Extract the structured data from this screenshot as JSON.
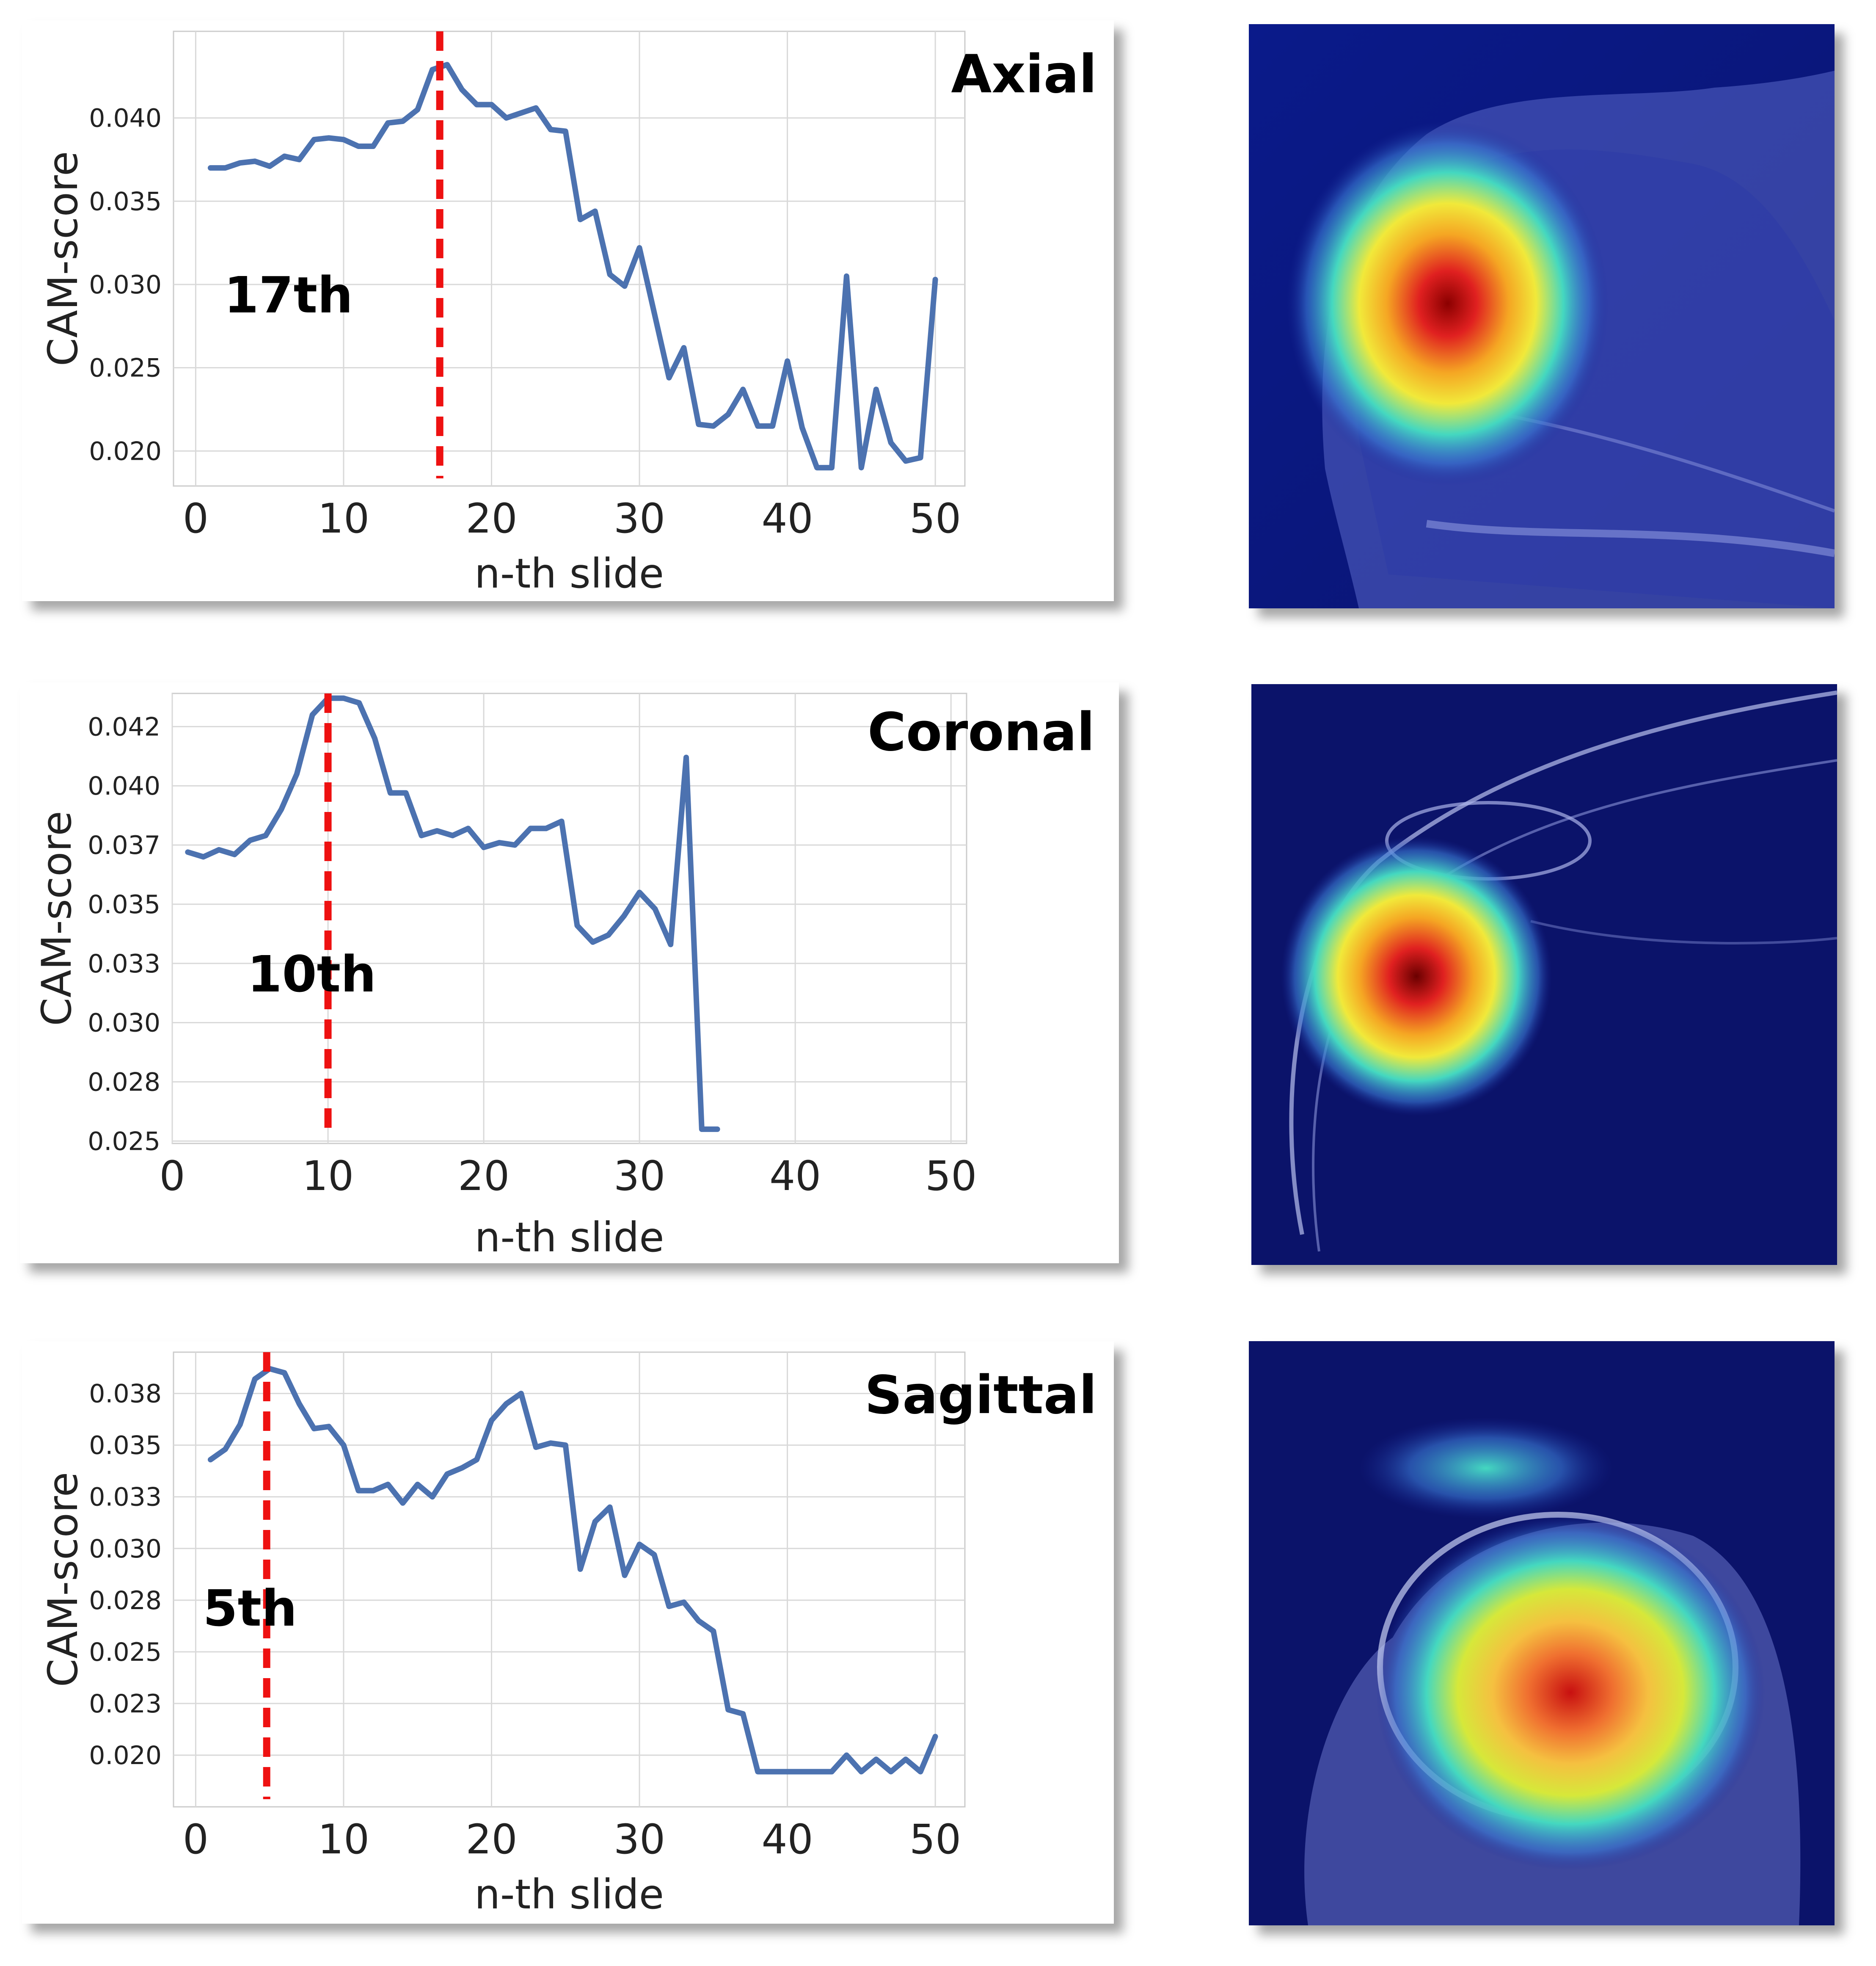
{
  "colors": {
    "line": "#4c72b0",
    "marker": "#ee1111",
    "grid": "#d9d9d9"
  },
  "chart_data": [
    {
      "type": "line",
      "title": "Axial",
      "xlabel": "n-th slide",
      "ylabel": "CAM-score",
      "xlim": [
        -1.5,
        52
      ],
      "ylim": [
        0.0179,
        0.0452
      ],
      "xticks": [
        0,
        10,
        20,
        30,
        40,
        50
      ],
      "xtick_labels": [
        "0",
        "10",
        "20",
        "30",
        "40",
        "50"
      ],
      "yticks": [
        0.02,
        0.025,
        0.03,
        0.035,
        0.04
      ],
      "ytick_labels": [
        "0.020",
        "0.025",
        "0.030",
        "0.035",
        "0.040"
      ],
      "grid": true,
      "marker_x": 16.5,
      "marker_label": "17th",
      "series": [
        {
          "x": [
            1,
            2,
            3,
            4,
            5,
            6,
            7,
            8,
            9,
            10,
            11,
            12,
            13,
            14,
            15,
            16,
            17,
            18,
            19,
            20,
            21,
            22,
            23,
            24,
            25,
            26,
            27,
            28,
            29,
            30,
            31,
            32,
            33,
            34,
            35,
            36,
            37,
            38,
            39,
            40,
            41,
            42,
            43,
            44,
            45,
            46,
            47,
            48,
            49,
            50
          ],
          "values": [
            0.037,
            0.037,
            0.0373,
            0.0374,
            0.0371,
            0.0377,
            0.0375,
            0.0387,
            0.0388,
            0.0387,
            0.0383,
            0.0383,
            0.0397,
            0.0398,
            0.0405,
            0.0429,
            0.0432,
            0.0417,
            0.0408,
            0.0408,
            0.04,
            0.0403,
            0.0406,
            0.0393,
            0.0392,
            0.0339,
            0.0344,
            0.0306,
            0.0299,
            0.0322,
            0.0283,
            0.0244,
            0.0262,
            0.0216,
            0.0215,
            0.0222,
            0.0237,
            0.0215,
            0.0215,
            0.0254,
            0.0214,
            0.019,
            0.019,
            0.0305,
            0.019,
            0.0237,
            0.0205,
            0.0194,
            0.0196,
            0.0303
          ]
        }
      ]
    },
    {
      "type": "line",
      "title": "Coronal",
      "xlabel": "n-th slide",
      "ylabel": "CAM-score",
      "xlim": [
        0,
        51
      ],
      "ylim": [
        0.0249,
        0.0439
      ],
      "xticks": [
        0,
        10,
        20,
        30,
        40,
        50
      ],
      "xtick_labels": [
        "0",
        "10",
        "20",
        "30",
        "40",
        "50"
      ],
      "yticks": [
        0.025,
        0.0275,
        0.03,
        0.0325,
        0.035,
        0.0375,
        0.04,
        0.0425
      ],
      "ytick_labels": [
        "0.025",
        "0.028",
        "0.030",
        "0.033",
        "0.035",
        "0.037",
        "0.040",
        "0.042"
      ],
      "grid": true,
      "marker_x": 10,
      "marker_label": "10th",
      "series": [
        {
          "x": [
            1,
            2,
            3,
            4,
            5,
            6,
            7,
            8,
            9,
            10,
            11,
            12,
            13,
            14,
            15,
            16,
            17,
            18,
            19,
            20,
            21,
            22,
            23,
            24,
            25,
            26,
            27,
            28,
            29,
            30,
            31,
            32,
            33,
            34,
            35
          ],
          "values": [
            0.0372,
            0.037,
            0.0373,
            0.0371,
            0.0377,
            0.0379,
            0.039,
            0.0405,
            0.043,
            0.0437,
            0.0437,
            0.0435,
            0.042,
            0.0397,
            0.0397,
            0.0379,
            0.0381,
            0.0379,
            0.0382,
            0.0374,
            0.0376,
            0.0375,
            0.0382,
            0.0382,
            0.0385,
            0.0341,
            0.0334,
            0.0337,
            0.0345,
            0.0355,
            0.0348,
            0.0333,
            0.0412,
            0.0255,
            0.0255
          ]
        }
      ]
    },
    {
      "type": "line",
      "title": "Sagittal",
      "xlabel": "n-th slide",
      "ylabel": "CAM-score",
      "xlim": [
        -1.5,
        52
      ],
      "ylim": [
        0.0175,
        0.0395
      ],
      "xticks": [
        0,
        10,
        20,
        30,
        40,
        50
      ],
      "xtick_labels": [
        "0",
        "10",
        "20",
        "30",
        "40",
        "50"
      ],
      "yticks": [
        0.02,
        0.0225,
        0.025,
        0.0275,
        0.03,
        0.0325,
        0.035,
        0.0375
      ],
      "ytick_labels": [
        "0.020",
        "0.023",
        "0.025",
        "0.028",
        "0.030",
        "0.033",
        "0.035",
        "0.038"
      ],
      "grid": true,
      "marker_x": 4.8,
      "marker_label": "5th",
      "series": [
        {
          "x": [
            1,
            2,
            3,
            4,
            5,
            6,
            7,
            8,
            9,
            10,
            11,
            12,
            13,
            14,
            15,
            16,
            17,
            18,
            19,
            20,
            21,
            22,
            23,
            24,
            25,
            26,
            27,
            28,
            29,
            30,
            31,
            32,
            33,
            34,
            35,
            36,
            37,
            38,
            39,
            40,
            41,
            42,
            43,
            44,
            45,
            46,
            47,
            48,
            49,
            50
          ],
          "values": [
            0.0343,
            0.0348,
            0.036,
            0.0382,
            0.0387,
            0.0385,
            0.037,
            0.0358,
            0.0359,
            0.035,
            0.0328,
            0.0328,
            0.0331,
            0.0322,
            0.0331,
            0.0325,
            0.0336,
            0.0339,
            0.0343,
            0.0362,
            0.037,
            0.0375,
            0.0349,
            0.0351,
            0.035,
            0.029,
            0.0313,
            0.032,
            0.0287,
            0.0302,
            0.0297,
            0.0272,
            0.0274,
            0.0265,
            0.026,
            0.0222,
            0.022,
            0.0192,
            0.0192,
            0.0192,
            0.0192,
            0.0192,
            0.0192,
            0.02,
            0.0192,
            0.0198,
            0.0192,
            0.0198,
            0.0192,
            0.0209
          ]
        }
      ]
    }
  ]
}
